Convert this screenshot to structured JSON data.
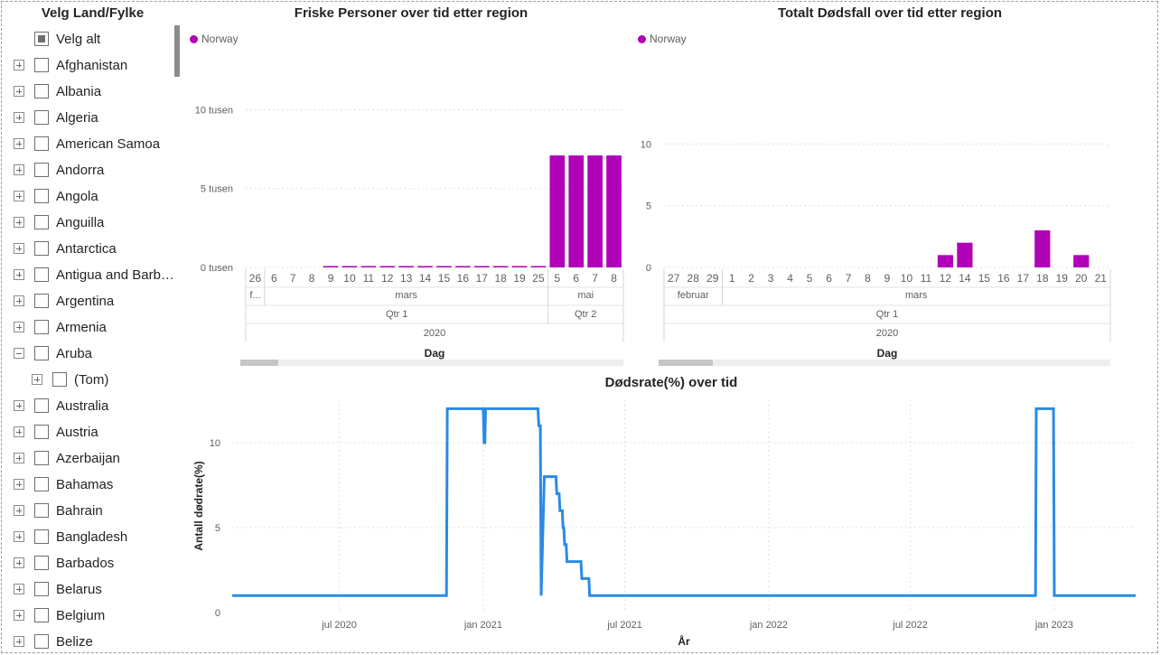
{
  "slicer": {
    "title": "Velg Land/Fylke",
    "select_all": "Velg alt",
    "items": [
      {
        "label": "Afghanistan",
        "expanded": false,
        "child": false
      },
      {
        "label": "Albania",
        "expanded": false,
        "child": false
      },
      {
        "label": "Algeria",
        "expanded": false,
        "child": false
      },
      {
        "label": "American Samoa",
        "expanded": false,
        "child": false
      },
      {
        "label": "Andorra",
        "expanded": false,
        "child": false
      },
      {
        "label": "Angola",
        "expanded": false,
        "child": false
      },
      {
        "label": "Anguilla",
        "expanded": false,
        "child": false
      },
      {
        "label": "Antarctica",
        "expanded": false,
        "child": false
      },
      {
        "label": "Antigua and Barbuda",
        "expanded": false,
        "child": false
      },
      {
        "label": "Argentina",
        "expanded": false,
        "child": false
      },
      {
        "label": "Armenia",
        "expanded": false,
        "child": false
      },
      {
        "label": "Aruba",
        "expanded": true,
        "child": false
      },
      {
        "label": "(Tom)",
        "expanded": false,
        "child": true
      },
      {
        "label": "Australia",
        "expanded": false,
        "child": false
      },
      {
        "label": "Austria",
        "expanded": false,
        "child": false
      },
      {
        "label": "Azerbaijan",
        "expanded": false,
        "child": false
      },
      {
        "label": "Bahamas",
        "expanded": false,
        "child": false
      },
      {
        "label": "Bahrain",
        "expanded": false,
        "child": false
      },
      {
        "label": "Bangladesh",
        "expanded": false,
        "child": false
      },
      {
        "label": "Barbados",
        "expanded": false,
        "child": false
      },
      {
        "label": "Belarus",
        "expanded": false,
        "child": false
      },
      {
        "label": "Belgium",
        "expanded": false,
        "child": false
      },
      {
        "label": "Belize",
        "expanded": false,
        "child": false
      }
    ]
  },
  "colors": {
    "bar": "#b000b8",
    "legend_dot": "#b000b8",
    "line": "#2a8ae6"
  },
  "chart_data": [
    {
      "type": "bar",
      "title": "Friske Personer over tid etter region",
      "legend": [
        "Norway"
      ],
      "legend_position": "top-left",
      "xlabel": "Dag",
      "ylabel": "",
      "ylim": [
        0,
        11000
      ],
      "yticks": [
        0,
        5000,
        10000
      ],
      "ytick_labels": [
        "0 tusen",
        "5 tusen",
        "10 tusen"
      ],
      "grid": true,
      "categories": [
        "26",
        "6",
        "7",
        "8",
        "9",
        "10",
        "11",
        "12",
        "13",
        "14",
        "15",
        "16",
        "17",
        "18",
        "19",
        "25",
        "5",
        "6",
        "7",
        "8"
      ],
      "series": [
        {
          "name": "Norway",
          "values": [
            0,
            0,
            0,
            0,
            50,
            50,
            50,
            50,
            50,
            50,
            50,
            50,
            50,
            50,
            50,
            50,
            7100,
            7100,
            7100,
            7100
          ]
        }
      ],
      "month_labels": [
        "f...",
        "mars",
        "mai"
      ],
      "month_spans": [
        [
          0,
          0
        ],
        [
          1,
          15
        ],
        [
          16,
          19
        ]
      ],
      "quarter_labels": [
        "Qtr 1",
        "Qtr 2"
      ],
      "quarter_spans": [
        [
          0,
          15
        ],
        [
          16,
          19
        ]
      ],
      "year_labels": [
        "2020"
      ]
    },
    {
      "type": "bar",
      "title": "Totalt Dødsfall over tid etter region",
      "legend": [
        "Norway"
      ],
      "legend_position": "top-left",
      "xlabel": "Dag",
      "ylabel": "",
      "ylim": [
        0,
        12
      ],
      "yticks": [
        0,
        5,
        10
      ],
      "ytick_labels": [
        "0",
        "5",
        "10"
      ],
      "grid": true,
      "categories": [
        "27",
        "28",
        "29",
        "1",
        "2",
        "3",
        "4",
        "5",
        "6",
        "7",
        "8",
        "9",
        "10",
        "11",
        "12",
        "14",
        "15",
        "16",
        "17",
        "18",
        "19",
        "20",
        "21"
      ],
      "series": [
        {
          "name": "Norway",
          "values": [
            0,
            0,
            0,
            0,
            0,
            0,
            0,
            0,
            0,
            0,
            0,
            0,
            0,
            0,
            1,
            2,
            0,
            0,
            0,
            3,
            0,
            1,
            0
          ]
        }
      ],
      "month_labels": [
        "februar",
        "mars"
      ],
      "month_spans": [
        [
          0,
          2
        ],
        [
          3,
          22
        ]
      ],
      "quarter_labels": [
        "Qtr 1"
      ],
      "quarter_spans": [
        [
          0,
          22
        ]
      ],
      "year_labels": [
        "2020"
      ]
    },
    {
      "type": "line",
      "title": "Dødsrate(%) over tid",
      "xlabel": "År",
      "ylabel": "Antall dødrate(%)",
      "ylim": [
        0,
        12.5
      ],
      "yticks": [
        0,
        5,
        10
      ],
      "xlim": [
        "2020-02-15",
        "2023-04-15"
      ],
      "xticks": [
        "2020-07-01",
        "2021-01-01",
        "2021-07-01",
        "2022-01-01",
        "2022-07-01",
        "2023-01-01"
      ],
      "xtick_labels": [
        "jul 2020",
        "jan 2021",
        "jul 2021",
        "jan 2022",
        "jul 2022",
        "jan 2023"
      ],
      "grid": true,
      "series": [
        {
          "x": [
            "2020-02-15",
            "2020-11-15",
            "2020-11-16",
            "2021-01-01",
            "2021-01-02",
            "2021-01-03",
            "2021-01-04",
            "2021-01-05",
            "2021-03-12",
            "2021-03-13",
            "2021-03-15",
            "2021-03-16",
            "2021-03-20",
            "2021-04-04",
            "2021-04-05",
            "2021-04-08",
            "2021-04-09",
            "2021-04-12",
            "2021-04-13",
            "2021-04-14",
            "2021-04-15",
            "2021-04-17",
            "2021-04-18",
            "2021-05-06",
            "2021-05-07",
            "2021-05-16",
            "2021-05-17",
            "2022-12-08",
            "2022-12-09",
            "2022-12-31",
            "2023-01-01",
            "2023-04-15"
          ],
          "y": [
            1,
            1,
            12,
            12,
            10,
            10,
            12,
            12,
            12,
            11,
            11,
            1,
            8,
            8,
            7,
            7,
            6,
            6,
            5,
            5,
            4,
            4,
            3,
            3,
            2,
            2,
            1,
            1,
            12,
            12,
            1,
            1
          ]
        }
      ]
    }
  ]
}
